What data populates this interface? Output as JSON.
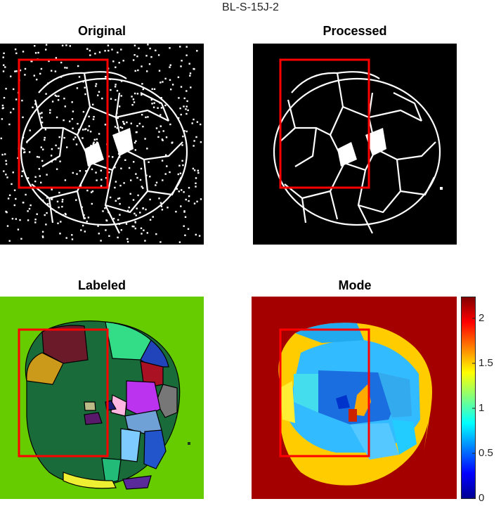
{
  "figure": {
    "suptitle": "BL-S-15J-2"
  },
  "panels": {
    "original": {
      "title": "Original"
    },
    "processed": {
      "title": "Processed"
    },
    "labeled": {
      "title": "Labeled"
    },
    "mode": {
      "title": "Mode"
    }
  },
  "colorbar": {
    "ticks": [
      "0",
      "0.5",
      "1",
      "1.5",
      "2"
    ],
    "range": [
      0,
      2.25
    ],
    "colormap": "jet"
  },
  "colors": {
    "roi_box": "#ff0000",
    "labeled_background": "#66cc00",
    "mode_background": "#a50000"
  }
}
